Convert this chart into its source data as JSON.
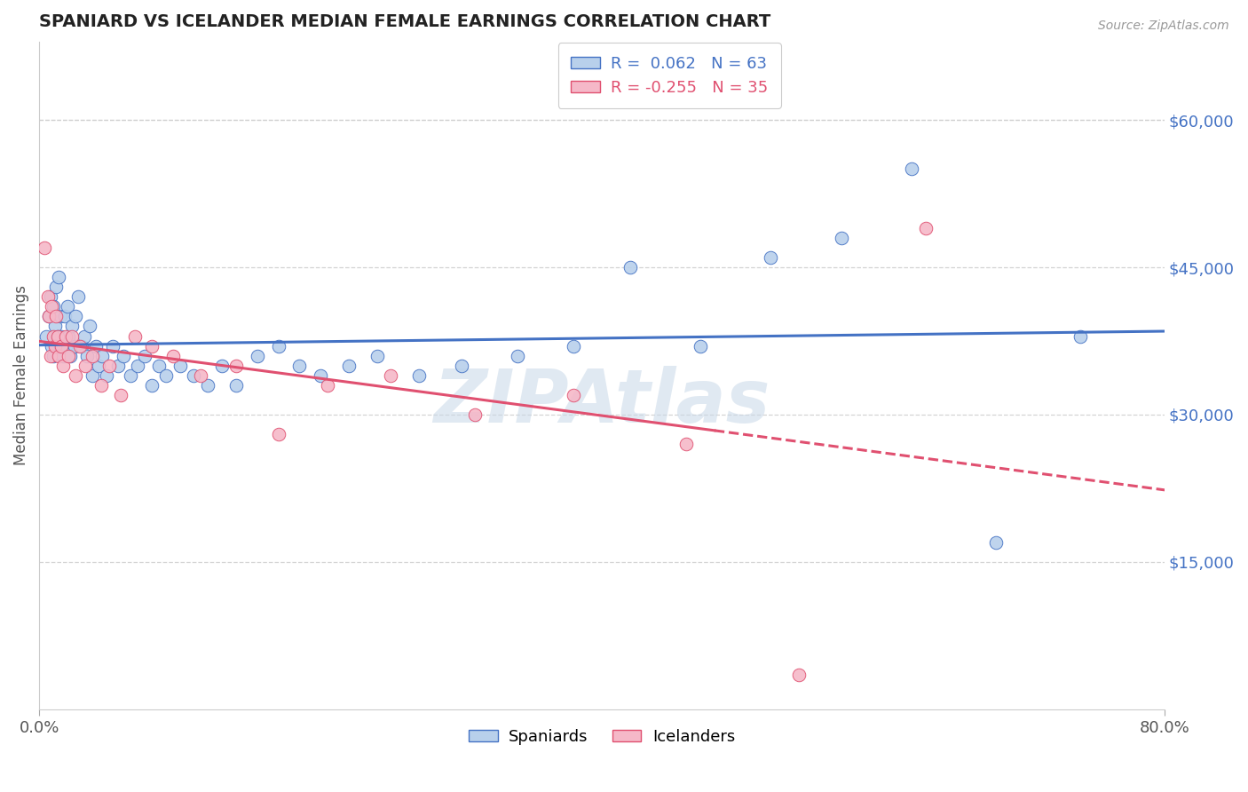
{
  "title": "SPANIARD VS ICELANDER MEDIAN FEMALE EARNINGS CORRELATION CHART",
  "source_text": "Source: ZipAtlas.com",
  "ylabel": "Median Female Earnings",
  "right_yticks": [
    15000,
    30000,
    45000,
    60000
  ],
  "right_yticklabels": [
    "$15,000",
    "$30,000",
    "$45,000",
    "$60,000"
  ],
  "xlim": [
    0.0,
    0.8
  ],
  "ylim": [
    0,
    68000
  ],
  "xticks": [
    0.0,
    0.8
  ],
  "xticklabels": [
    "0.0%",
    "80.0%"
  ],
  "spaniard_color": "#b8d0eb",
  "icelander_color": "#f5b8c8",
  "trend_blue": "#4472c4",
  "trend_pink": "#e05070",
  "legend_r_blue": "0.062",
  "legend_n_blue": "63",
  "legend_r_pink": "-0.255",
  "legend_n_pink": "35",
  "grid_color": "#d0d0d0",
  "background_color": "#ffffff",
  "watermark": "ZIPAtlas",
  "spaniards_x": [
    0.005,
    0.007,
    0.008,
    0.009,
    0.01,
    0.01,
    0.011,
    0.012,
    0.013,
    0.014,
    0.015,
    0.015,
    0.016,
    0.017,
    0.018,
    0.019,
    0.02,
    0.021,
    0.022,
    0.023,
    0.025,
    0.026,
    0.028,
    0.03,
    0.032,
    0.034,
    0.036,
    0.038,
    0.04,
    0.042,
    0.045,
    0.048,
    0.052,
    0.056,
    0.06,
    0.065,
    0.07,
    0.075,
    0.08,
    0.085,
    0.09,
    0.1,
    0.11,
    0.12,
    0.13,
    0.14,
    0.155,
    0.17,
    0.185,
    0.2,
    0.22,
    0.24,
    0.27,
    0.3,
    0.34,
    0.38,
    0.42,
    0.47,
    0.52,
    0.57,
    0.62,
    0.68,
    0.74
  ],
  "spaniards_y": [
    38000,
    40000,
    42000,
    37000,
    36000,
    41000,
    39000,
    43000,
    38000,
    44000,
    37000,
    40000,
    38000,
    36000,
    40000,
    37000,
    41000,
    38000,
    36000,
    39000,
    37000,
    40000,
    42000,
    37000,
    38000,
    36000,
    39000,
    34000,
    37000,
    35000,
    36000,
    34000,
    37000,
    35000,
    36000,
    34000,
    35000,
    36000,
    33000,
    35000,
    34000,
    35000,
    34000,
    33000,
    35000,
    33000,
    36000,
    37000,
    35000,
    34000,
    35000,
    36000,
    34000,
    35000,
    36000,
    37000,
    45000,
    37000,
    46000,
    48000,
    55000,
    17000,
    38000
  ],
  "icelanders_x": [
    0.004,
    0.006,
    0.007,
    0.008,
    0.009,
    0.01,
    0.011,
    0.012,
    0.013,
    0.014,
    0.016,
    0.017,
    0.019,
    0.021,
    0.023,
    0.026,
    0.029,
    0.033,
    0.038,
    0.044,
    0.05,
    0.058,
    0.068,
    0.08,
    0.095,
    0.115,
    0.14,
    0.17,
    0.205,
    0.25,
    0.31,
    0.38,
    0.46,
    0.54,
    0.63
  ],
  "icelanders_y": [
    47000,
    42000,
    40000,
    36000,
    41000,
    38000,
    37000,
    40000,
    38000,
    36000,
    37000,
    35000,
    38000,
    36000,
    38000,
    34000,
    37000,
    35000,
    36000,
    33000,
    35000,
    32000,
    38000,
    37000,
    36000,
    34000,
    35000,
    28000,
    33000,
    34000,
    30000,
    32000,
    27000,
    3500,
    49000
  ],
  "pink_solid_xlim": [
    0.0,
    0.48
  ],
  "pink_dashed_xlim": [
    0.48,
    0.8
  ]
}
